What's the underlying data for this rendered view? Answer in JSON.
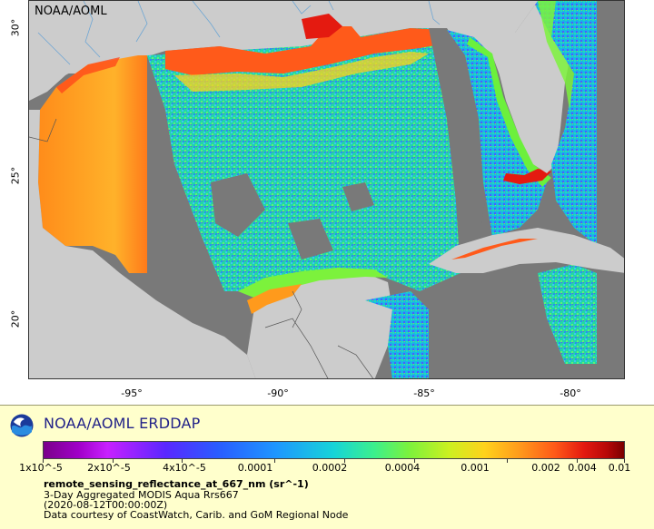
{
  "map": {
    "credit": "NOAA/AOML",
    "lat_labels": [
      "30°",
      "25°",
      "20°"
    ],
    "lon_labels": [
      "-95°",
      "-90°",
      "-85°",
      "-80°"
    ],
    "colors": {
      "land": "#cccccc",
      "no_data": "#797979",
      "rivers": "#6ea6d4",
      "borders": "#555555"
    }
  },
  "legend": {
    "title": "NOAA/AOML ERDDAP",
    "colorbar_labels": [
      "1x10^-5",
      "2x10^-5",
      "4x10^-5",
      "0.0001",
      "0.0002",
      "0.0004",
      "0.001",
      "0.002",
      "0.004",
      "0.01"
    ],
    "variable": "remote_sensing_reflectance_at_667_nm (sr^-1)",
    "lines": [
      "3-Day Aggregated MODIS Aqua Rrs667",
      "(2020-08-12T00:00:00Z)",
      "Data courtesy of CoastWatch, Carib. and GoM Regional Node"
    ]
  }
}
